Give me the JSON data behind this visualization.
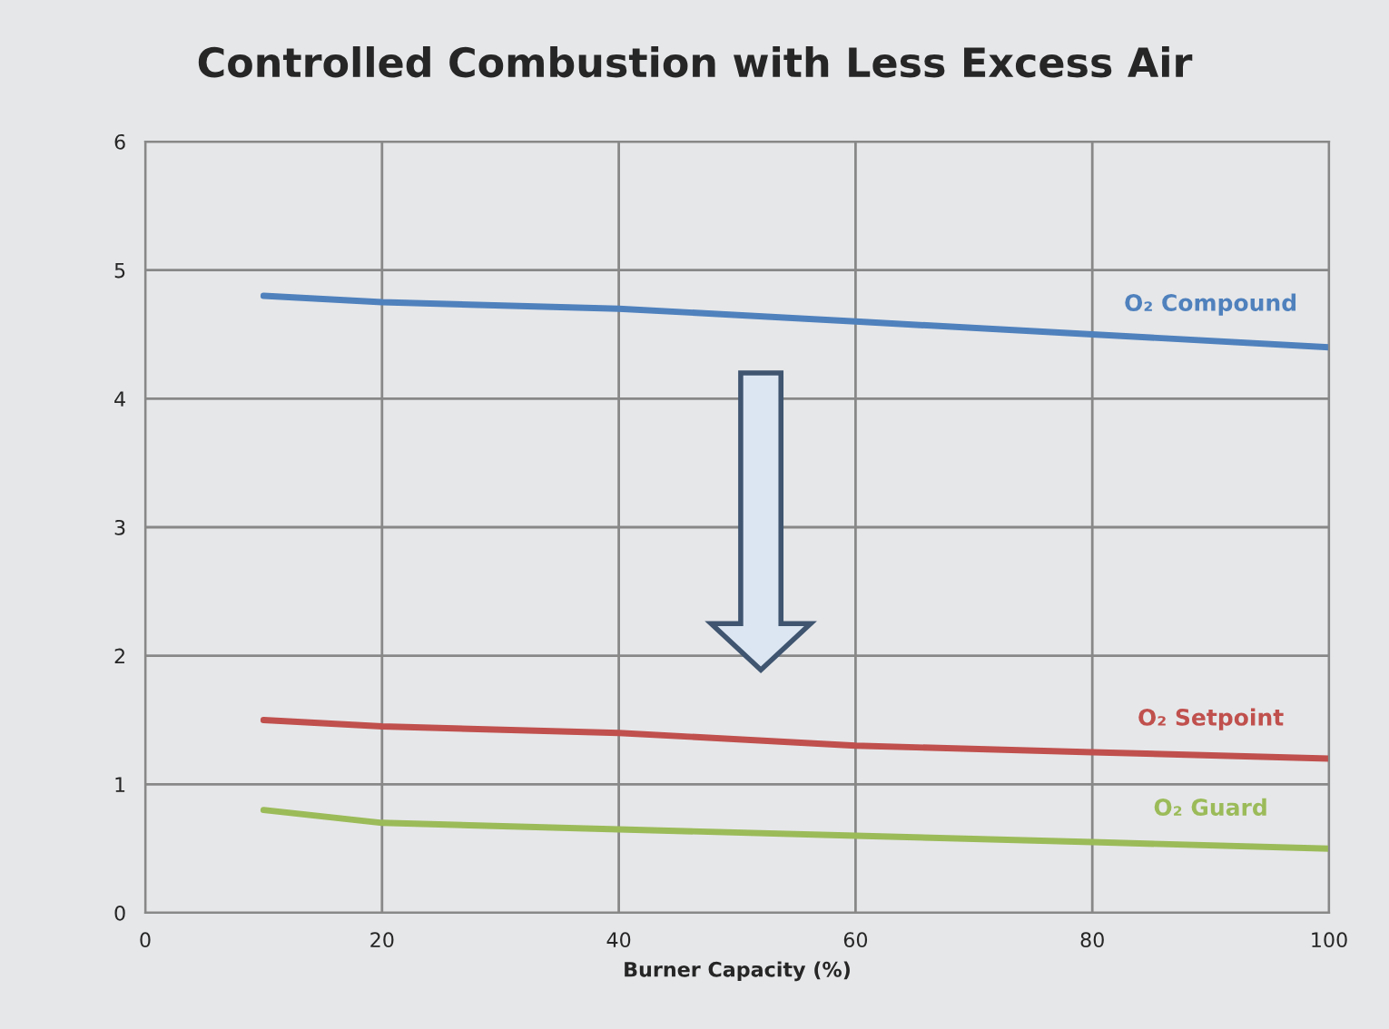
{
  "chart_data": {
    "type": "line",
    "title": "Controlled Combustion with Less Excess Air",
    "xlabel": "Burner Capacity (%)",
    "x": [
      10,
      20,
      40,
      60,
      80,
      100
    ],
    "series": [
      {
        "name": "O₂ Compound",
        "color": "#4f81bd",
        "values": [
          4.8,
          4.75,
          4.7,
          4.6,
          4.5,
          4.4
        ]
      },
      {
        "name": "O₂ Setpoint",
        "color": "#c0504d",
        "values": [
          1.5,
          1.45,
          1.4,
          1.3,
          1.25,
          1.2
        ]
      },
      {
        "name": "O₂ Guard",
        "color": "#9bbb59",
        "values": [
          0.8,
          0.7,
          0.65,
          0.6,
          0.55,
          0.5
        ]
      }
    ],
    "xlim": [
      0,
      100
    ],
    "xticks": [
      0,
      20,
      40,
      60,
      80,
      100
    ],
    "ylim": [
      0,
      6
    ],
    "yticks": [
      0,
      1,
      2,
      3,
      4,
      5,
      6
    ],
    "grid": true,
    "legend": false,
    "marker": "none",
    "line_style": "solid"
  }
}
